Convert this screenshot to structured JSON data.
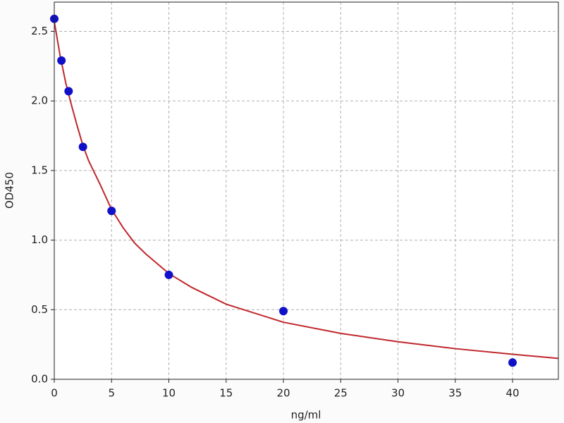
{
  "chart_data": {
    "type": "scatter",
    "x_label": "ng/ml",
    "y_label": "OD450",
    "xlim": [
      0,
      44
    ],
    "ylim": [
      0,
      2.71
    ],
    "xticks": [
      0,
      5,
      10,
      15,
      20,
      25,
      30,
      35,
      40
    ],
    "yticks": [
      {
        "value": 0,
        "label": "0.0"
      },
      0.5,
      {
        "value": 1,
        "label": "1.0"
      },
      1.5,
      {
        "value": 2,
        "label": "2.0"
      },
      2.5
    ],
    "grid": true,
    "series": [
      {
        "type": "line",
        "color": "#c0272d",
        "x": [
          0,
          0.5,
          1,
          1.5,
          2,
          2.5,
          3,
          4,
          5,
          6,
          7,
          8,
          10,
          12,
          15,
          20,
          25,
          30,
          35,
          40,
          44
        ],
        "values": [
          2.57,
          2.33,
          2.13,
          1.97,
          1.82,
          1.68,
          1.57,
          1.4,
          1.22,
          1.09,
          0.98,
          0.9,
          0.76,
          0.66,
          0.54,
          0.41,
          0.33,
          0.27,
          0.22,
          0.18,
          0.15
        ]
      },
      {
        "type": "scatter",
        "color": "#1010c8",
        "x": [
          0,
          0.625,
          1.25,
          2.5,
          5,
          10,
          20,
          40
        ],
        "values": [
          2.59,
          2.29,
          2.07,
          1.67,
          1.21,
          0.75,
          0.49,
          0.12
        ]
      }
    ]
  }
}
